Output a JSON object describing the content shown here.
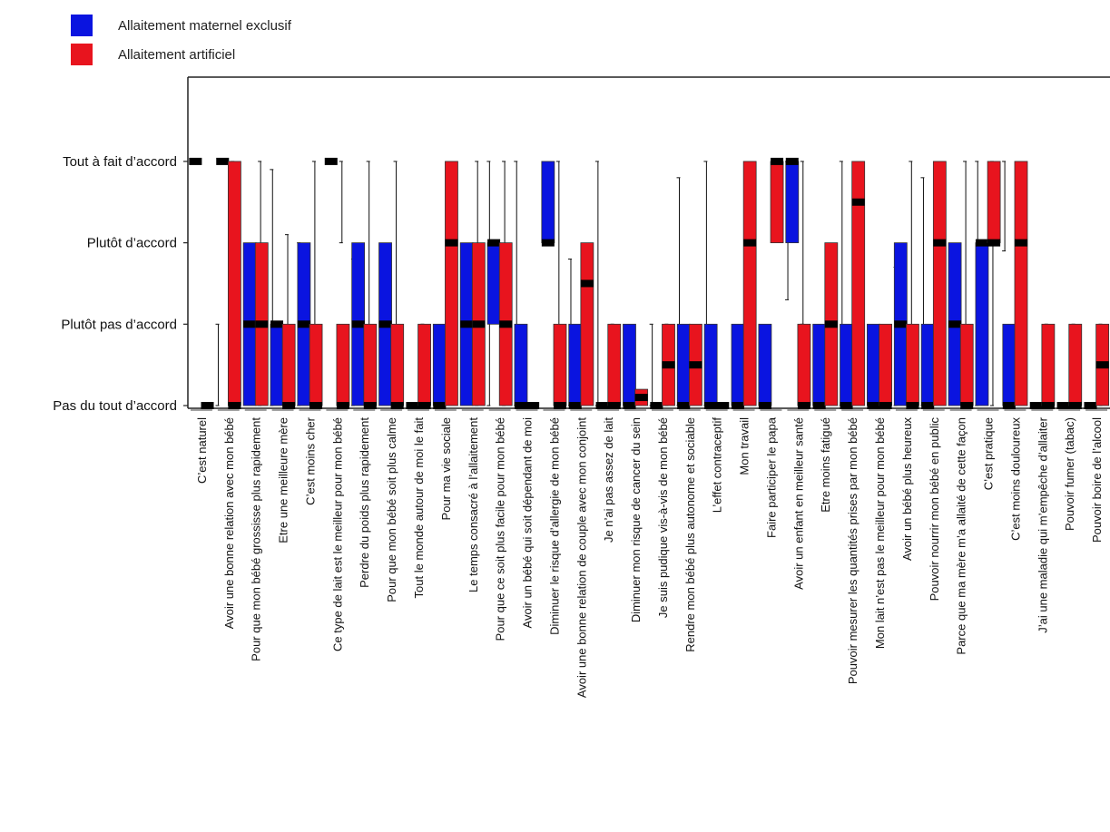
{
  "colors": {
    "exclusive": "#0a14e0",
    "artificial": "#e8141e",
    "marker": "#000000",
    "axis": "#222222"
  },
  "legend": [
    {
      "label": "Allaitement maternel exclusif",
      "color": "#0a14e0"
    },
    {
      "label": "Allaitement artificiel",
      "color": "#e8141e"
    }
  ],
  "chart_data": {
    "type": "boxplot",
    "y_ticks": [
      "Pas du tout d’accord",
      "Plutôt pas d’accord",
      "Plutôt d’accord",
      "Tout à fait d’accord"
    ],
    "ylim": [
      1,
      4.5
    ],
    "series_names": [
      "Allaitement maternel exclusif",
      "Allaitement artificiel"
    ],
    "categories": [
      {
        "label": "C’est naturel",
        "exclusive": {
          "q1": 4,
          "med": 4,
          "q3": 4,
          "wlo": 4,
          "whi": 4
        },
        "artificial": {
          "q1": 1,
          "med": 1,
          "q3": 1,
          "wlo": 1,
          "whi": 2
        }
      },
      {
        "label": "Avoir une bonne relation avec mon bébé",
        "exclusive": {
          "q1": 4,
          "med": 4,
          "q3": 4,
          "wlo": 3,
          "whi": 4
        },
        "artificial": {
          "q1": 1,
          "med": 1,
          "q3": 4,
          "wlo": 1,
          "whi": 4
        }
      },
      {
        "label": "Pour que mon bébé grossisse plus rapidement",
        "exclusive": {
          "q1": 1,
          "med": 2,
          "q3": 3,
          "wlo": 1,
          "whi": 4
        },
        "artificial": {
          "q1": 1,
          "med": 2,
          "q3": 3,
          "wlo": 1,
          "whi": 3.9
        }
      },
      {
        "label": "Etre une meilleure mère",
        "exclusive": {
          "q1": 1,
          "med": 2,
          "q3": 2,
          "wlo": 1,
          "whi": 3.1
        },
        "artificial": {
          "q1": 1,
          "med": 1,
          "q3": 2,
          "wlo": 1,
          "whi": 3
        }
      },
      {
        "label": "C’est moins cher",
        "exclusive": {
          "q1": 1,
          "med": 2,
          "q3": 3,
          "wlo": 1,
          "whi": 4
        },
        "artificial": {
          "q1": 1,
          "med": 1,
          "q3": 2,
          "wlo": 1,
          "whi": 2
        }
      },
      {
        "label": "Ce type de lait est le meilleur pour mon bébé",
        "exclusive": {
          "q1": 4,
          "med": 4,
          "q3": 4,
          "wlo": 3,
          "whi": 4
        },
        "artificial": {
          "q1": 1,
          "med": 1,
          "q3": 2,
          "wlo": 1,
          "whi": 2.8
        }
      },
      {
        "label": "Perdre du poids plus rapidement",
        "exclusive": {
          "q1": 1,
          "med": 2,
          "q3": 3,
          "wlo": 1,
          "whi": 4
        },
        "artificial": {
          "q1": 1,
          "med": 1,
          "q3": 2,
          "wlo": 1,
          "whi": 2
        }
      },
      {
        "label": "Pour que mon bébé soit plus calme",
        "exclusive": {
          "q1": 1,
          "med": 2,
          "q3": 3,
          "wlo": 1,
          "whi": 4
        },
        "artificial": {
          "q1": 1,
          "med": 1,
          "q3": 2,
          "wlo": 1,
          "whi": 2
        }
      },
      {
        "label": "Tout le monde autour de moi le fait",
        "exclusive": {
          "q1": 1,
          "med": 1,
          "q3": 1,
          "wlo": 1,
          "whi": 2
        },
        "artificial": {
          "q1": 1,
          "med": 1,
          "q3": 2,
          "wlo": 1,
          "whi": 2
        }
      },
      {
        "label": "Pour ma vie sociale",
        "exclusive": {
          "q1": 1,
          "med": 1,
          "q3": 2,
          "wlo": 1,
          "whi": 2
        },
        "artificial": {
          "q1": 1,
          "med": 3,
          "q3": 4,
          "wlo": 1,
          "whi": 4
        }
      },
      {
        "label": "Le temps consacré à l’allaitement",
        "exclusive": {
          "q1": 1,
          "med": 2,
          "q3": 3,
          "wlo": 1,
          "whi": 4
        },
        "artificial": {
          "q1": 1,
          "med": 2,
          "q3": 3,
          "wlo": 1,
          "whi": 4
        }
      },
      {
        "label": "Pour que ce soit plus facile pour mon bébé",
        "exclusive": {
          "q1": 2,
          "med": 3,
          "q3": 3,
          "wlo": 1,
          "whi": 4
        },
        "artificial": {
          "q1": 1,
          "med": 2,
          "q3": 3,
          "wlo": 1,
          "whi": 4
        }
      },
      {
        "label": "Avoir un bébé qui soit dépendant de moi",
        "exclusive": {
          "q1": 1,
          "med": 1,
          "q3": 2,
          "wlo": 1,
          "whi": 2
        },
        "artificial": {
          "q1": 1,
          "med": 1,
          "q3": 1,
          "wlo": 1,
          "whi": 1
        }
      },
      {
        "label": "Diminuer le risque d’allergie de mon bébé",
        "exclusive": {
          "q1": 3,
          "med": 3,
          "q3": 4,
          "wlo": 1,
          "whi": 4
        },
        "artificial": {
          "q1": 1,
          "med": 1,
          "q3": 2,
          "wlo": 1,
          "whi": 2.8
        }
      },
      {
        "label": "Avoir une bonne relation de couple avec mon conjoint",
        "exclusive": {
          "q1": 1,
          "med": 1,
          "q3": 2,
          "wlo": 1,
          "whi": 2
        },
        "artificial": {
          "q1": 1,
          "med": 2.5,
          "q3": 3,
          "wlo": 1,
          "whi": 4
        }
      },
      {
        "label": "Je n’ai pas assez de lait",
        "exclusive": {
          "q1": 1,
          "med": 1,
          "q3": 1,
          "wlo": 1,
          "whi": 2
        },
        "artificial": {
          "q1": 1,
          "med": 1,
          "q3": 2,
          "wlo": 1,
          "whi": 2
        }
      },
      {
        "label": "Diminuer mon risque de cancer du sein",
        "exclusive": {
          "q1": 1,
          "med": 1,
          "q3": 2,
          "wlo": 1,
          "whi": 2
        },
        "artificial": {
          "q1": 1,
          "med": 1.1,
          "q3": 1.2,
          "wlo": 1,
          "whi": 2
        }
      },
      {
        "label": "Je suis pudique vis-à-vis de mon bébé",
        "exclusive": {
          "q1": 1,
          "med": 1,
          "q3": 1,
          "wlo": 1,
          "whi": 2
        },
        "artificial": {
          "q1": 1,
          "med": 1.5,
          "q3": 2,
          "wlo": 1,
          "whi": 3.8
        }
      },
      {
        "label": "Rendre mon bébé plus autonome et sociable",
        "exclusive": {
          "q1": 1,
          "med": 1,
          "q3": 2,
          "wlo": 1,
          "whi": 2
        },
        "artificial": {
          "q1": 1,
          "med": 1.5,
          "q3": 2,
          "wlo": 1,
          "whi": 4
        }
      },
      {
        "label": "L’effet contraceptif",
        "exclusive": {
          "q1": 1,
          "med": 1,
          "q3": 2,
          "wlo": 1,
          "whi": 2
        },
        "artificial": {
          "q1": 1,
          "med": 1,
          "q3": 1,
          "wlo": 1,
          "whi": 1
        }
      },
      {
        "label": "Mon travail",
        "exclusive": {
          "q1": 1,
          "med": 1,
          "q3": 2,
          "wlo": 1,
          "whi": 2
        },
        "artificial": {
          "q1": 1,
          "med": 3,
          "q3": 4,
          "wlo": 1,
          "whi": 4
        }
      },
      {
        "label": "Faire participer le papa",
        "exclusive": {
          "q1": 1,
          "med": 1,
          "q3": 2,
          "wlo": 1,
          "whi": 2
        },
        "artificial": {
          "q1": 3,
          "med": 4,
          "q3": 4,
          "wlo": 2.3,
          "whi": 4
        }
      },
      {
        "label": "Avoir un enfant en meilleur santé",
        "exclusive": {
          "q1": 3,
          "med": 4,
          "q3": 4,
          "wlo": 2,
          "whi": 4
        },
        "artificial": {
          "q1": 1,
          "med": 1,
          "q3": 2,
          "wlo": 1,
          "whi": 2
        }
      },
      {
        "label": "Etre moins fatigué",
        "exclusive": {
          "q1": 1,
          "med": 1,
          "q3": 2,
          "wlo": 1,
          "whi": 2
        },
        "artificial": {
          "q1": 1,
          "med": 2,
          "q3": 3,
          "wlo": 1,
          "whi": 4
        }
      },
      {
        "label": "Pouvoir mesurer les quantités prises par mon bébé",
        "exclusive": {
          "q1": 1,
          "med": 1,
          "q3": 2,
          "wlo": 1,
          "whi": 2
        },
        "artificial": {
          "q1": 1,
          "med": 3.5,
          "q3": 4,
          "wlo": 1,
          "whi": 4
        }
      },
      {
        "label": "Mon lait n’est pas le meilleur pour mon bébé",
        "exclusive": {
          "q1": 1,
          "med": 1,
          "q3": 2,
          "wlo": 1,
          "whi": 2
        },
        "artificial": {
          "q1": 1,
          "med": 1,
          "q3": 2,
          "wlo": 1,
          "whi": 2.7
        }
      },
      {
        "label": "Avoir un bébé plus heureux",
        "exclusive": {
          "q1": 1,
          "med": 2,
          "q3": 3,
          "wlo": 1,
          "whi": 4
        },
        "artificial": {
          "q1": 1,
          "med": 1,
          "q3": 2,
          "wlo": 1,
          "whi": 3.8
        }
      },
      {
        "label": "Pouvoir nourrir mon bébé en public",
        "exclusive": {
          "q1": 1,
          "med": 1,
          "q3": 2,
          "wlo": 1,
          "whi": 2
        },
        "artificial": {
          "q1": 1,
          "med": 3,
          "q3": 4,
          "wlo": 1,
          "whi": 4
        }
      },
      {
        "label": "Parce que ma mère m’a allaité de cette façon",
        "exclusive": {
          "q1": 1,
          "med": 2,
          "q3": 3,
          "wlo": 1,
          "whi": 4
        },
        "artificial": {
          "q1": 1,
          "med": 1,
          "q3": 2,
          "wlo": 1,
          "whi": 4
        }
      },
      {
        "label": "C’est pratique",
        "exclusive": {
          "q1": 1,
          "med": 3,
          "q3": 3,
          "wlo": 1,
          "whi": 4
        },
        "artificial": {
          "q1": 3,
          "med": 3,
          "q3": 4,
          "wlo": 2.9,
          "whi": 4
        }
      },
      {
        "label": "C’est moins douloureux",
        "exclusive": {
          "q1": 1,
          "med": 1,
          "q3": 2,
          "wlo": 1,
          "whi": 2
        },
        "artificial": {
          "q1": 1,
          "med": 3,
          "q3": 4,
          "wlo": 1,
          "whi": 4
        }
      },
      {
        "label": "J’ai une maladie qui m’empêche d’allaiter",
        "exclusive": {
          "q1": 1,
          "med": 1,
          "q3": 1,
          "wlo": 1,
          "whi": 2
        },
        "artificial": {
          "q1": 1,
          "med": 1,
          "q3": 2,
          "wlo": 1,
          "whi": 2
        }
      },
      {
        "label": "Pouvoir fumer (tabac)",
        "exclusive": {
          "q1": 1,
          "med": 1,
          "q3": 1,
          "wlo": 1,
          "whi": 2
        },
        "artificial": {
          "q1": 1,
          "med": 1,
          "q3": 2,
          "wlo": 1,
          "whi": 2
        }
      },
      {
        "label": "Pouvoir boire de l’alcool",
        "exclusive": {
          "q1": 1,
          "med": 1,
          "q3": 1,
          "wlo": 1,
          "whi": 2
        },
        "artificial": {
          "q1": 1,
          "med": 1.5,
          "q3": 2,
          "wlo": 1,
          "whi": 2
        }
      }
    ]
  }
}
